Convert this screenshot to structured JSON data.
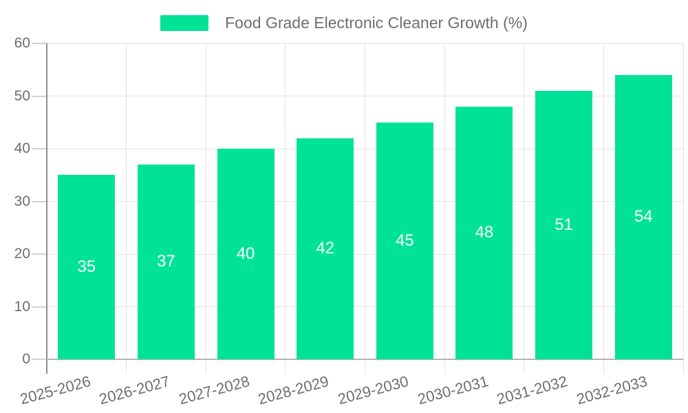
{
  "chart_data": {
    "type": "bar",
    "title": "Food Grade Electronic Cleaner Growth (%)",
    "categories": [
      "2025-2026",
      "2026-2027",
      "2027-2028",
      "2028-2029",
      "2029-2030",
      "2030-2031",
      "2031-2032",
      "2032-2033"
    ],
    "values": [
      35,
      37,
      40,
      42,
      45,
      48,
      51,
      54
    ],
    "xlabel": "",
    "ylabel": "",
    "ylim": [
      0,
      60
    ],
    "yticks": [
      0,
      10,
      20,
      30,
      40,
      50,
      60
    ],
    "grid": "on",
    "legend_position": "top-center",
    "colors": {
      "bar": "#00E396",
      "bar_value_label": "#ffffff",
      "axis_text": "#6e6e6e",
      "gridline": "#e3e3e3",
      "y_axis_line": "#8f8f8f",
      "x_axis_line": "#b3b3b3"
    }
  }
}
